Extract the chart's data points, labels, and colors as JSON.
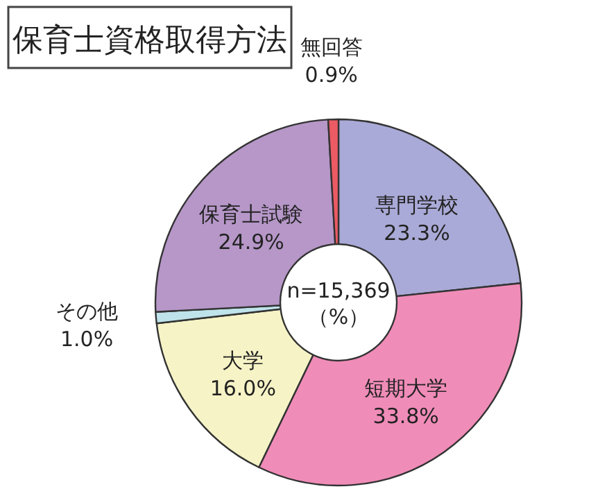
{
  "chart_data": {
    "type": "donut",
    "title": "保育士資格取得方法",
    "categories": [
      "専門学校",
      "短期大学",
      "大学",
      "その他",
      "保育士試験",
      "無回答"
    ],
    "values": [
      23.3,
      33.8,
      16.0,
      1.0,
      24.9,
      0.9
    ],
    "colors": [
      "#aaaad8",
      "#f08cb8",
      "#f6f3c6",
      "#bfe3ea",
      "#b697c8",
      "#ec5a64"
    ],
    "value_labels": [
      "23.3%",
      "33.8%",
      "16.0%",
      "1.0%",
      "24.9%",
      "0.9%"
    ],
    "annotations": [
      "n=15,369",
      "（%）"
    ]
  }
}
